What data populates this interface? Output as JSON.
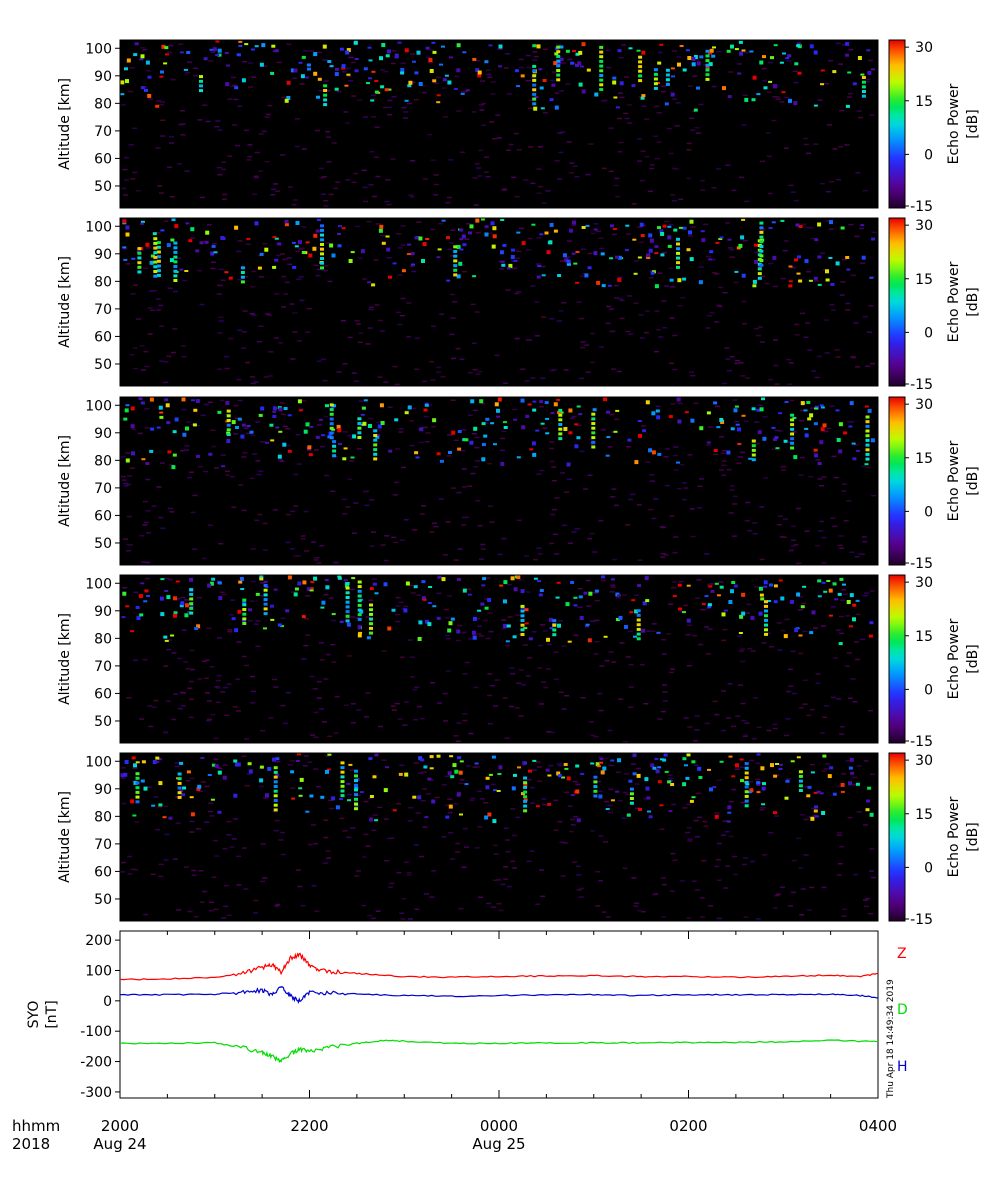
{
  "chart_data": [
    {
      "type": "heatmap",
      "panel": 1,
      "ylabel": "Altitude [km]",
      "ylim": [
        42,
        103
      ],
      "yticks": [
        "50",
        "60",
        "70",
        "80",
        "90",
        "100"
      ],
      "colorbar": {
        "label": "Echo Power [dB]",
        "range": [
          -15,
          32
        ],
        "ticks": [
          "30",
          "15",
          "0",
          "-15"
        ]
      },
      "seed": 11
    },
    {
      "type": "heatmap",
      "panel": 2,
      "ylabel": "Altitude [km]",
      "ylim": [
        42,
        103
      ],
      "yticks": [
        "50",
        "60",
        "70",
        "80",
        "90",
        "100"
      ],
      "colorbar": {
        "label": "Echo Power [dB]",
        "range": [
          -15,
          32
        ],
        "ticks": [
          "30",
          "15",
          "0",
          "-15"
        ]
      },
      "seed": 23
    },
    {
      "type": "heatmap",
      "panel": 3,
      "ylabel": "Altitude [km]",
      "ylim": [
        42,
        103
      ],
      "yticks": [
        "50",
        "60",
        "70",
        "80",
        "90",
        "100"
      ],
      "colorbar": {
        "label": "Echo Power [dB]",
        "range": [
          -15,
          32
        ],
        "ticks": [
          "30",
          "15",
          "0",
          "-15"
        ]
      },
      "seed": 37
    },
    {
      "type": "heatmap",
      "panel": 4,
      "ylabel": "Altitude [km]",
      "ylim": [
        42,
        103
      ],
      "yticks": [
        "50",
        "60",
        "70",
        "80",
        "90",
        "100"
      ],
      "colorbar": {
        "label": "Echo Power [dB]",
        "range": [
          -15,
          32
        ],
        "ticks": [
          "30",
          "15",
          "0",
          "-15"
        ]
      },
      "seed": 41
    },
    {
      "type": "heatmap",
      "panel": 5,
      "ylabel": "Altitude [km]",
      "ylim": [
        42,
        103
      ],
      "yticks": [
        "50",
        "60",
        "70",
        "80",
        "90",
        "100"
      ],
      "colorbar": {
        "label": "Echo Power [dB]",
        "range": [
          -15,
          32
        ],
        "ticks": [
          "30",
          "15",
          "0",
          "-15"
        ]
      },
      "seed": 53
    },
    {
      "type": "line",
      "ylabel": "SYO [nT]",
      "ylim": [
        -320,
        230
      ],
      "yticks": [
        "200",
        "100",
        "0",
        "-100",
        "-200",
        "-300"
      ],
      "x_hours_labels": [
        "2000",
        "2200",
        "0000",
        "0200",
        "0400"
      ],
      "series": [
        {
          "name": "Z",
          "color": "#ff0000",
          "points": [
            [
              0,
              70
            ],
            [
              0.5,
              72
            ],
            [
              1,
              78
            ],
            [
              1.3,
              90
            ],
            [
              1.5,
              110
            ],
            [
              1.6,
              120
            ],
            [
              1.7,
              95
            ],
            [
              1.8,
              140
            ],
            [
              1.9,
              150
            ],
            [
              2,
              120
            ],
            [
              2.1,
              100
            ],
            [
              2.3,
              95
            ],
            [
              2.6,
              88
            ],
            [
              3,
              80
            ],
            [
              3.5,
              78
            ],
            [
              4,
              80
            ],
            [
              4.5,
              82
            ],
            [
              5,
              83
            ],
            [
              5.5,
              80
            ],
            [
              6,
              80
            ],
            [
              6.5,
              78
            ],
            [
              7,
              80
            ],
            [
              7.5,
              85
            ],
            [
              7.8,
              80
            ],
            [
              8,
              90
            ]
          ]
        },
        {
          "name": "D",
          "color": "#00dd00",
          "points": [
            [
              0,
              -140
            ],
            [
              0.5,
              -140
            ],
            [
              1,
              -138
            ],
            [
              1.3,
              -155
            ],
            [
              1.5,
              -170
            ],
            [
              1.6,
              -180
            ],
            [
              1.7,
              -200
            ],
            [
              1.8,
              -175
            ],
            [
              1.9,
              -160
            ],
            [
              2,
              -165
            ],
            [
              2.2,
              -155
            ],
            [
              2.5,
              -140
            ],
            [
              2.8,
              -130
            ],
            [
              3,
              -133
            ],
            [
              3.5,
              -140
            ],
            [
              4,
              -140
            ],
            [
              4.5,
              -139
            ],
            [
              5,
              -138
            ],
            [
              5.5,
              -138
            ],
            [
              6,
              -137
            ],
            [
              6.5,
              -137
            ],
            [
              7,
              -135
            ],
            [
              7.5,
              -130
            ],
            [
              8,
              -135
            ]
          ]
        },
        {
          "name": "H",
          "color": "#0000cc",
          "points": [
            [
              0,
              20
            ],
            [
              0.5,
              20
            ],
            [
              1,
              22
            ],
            [
              1.3,
              28
            ],
            [
              1.5,
              35
            ],
            [
              1.6,
              20
            ],
            [
              1.7,
              45
            ],
            [
              1.8,
              15
            ],
            [
              1.9,
              0
            ],
            [
              2,
              30
            ],
            [
              2.2,
              25
            ],
            [
              2.5,
              22
            ],
            [
              3,
              18
            ],
            [
              3.5,
              15
            ],
            [
              4,
              18
            ],
            [
              4.5,
              20
            ],
            [
              5,
              20
            ],
            [
              5.5,
              18
            ],
            [
              6,
              20
            ],
            [
              6.5,
              20
            ],
            [
              7,
              20
            ],
            [
              7.5,
              22
            ],
            [
              7.8,
              18
            ],
            [
              8,
              10
            ]
          ]
        }
      ]
    }
  ],
  "xaxis": {
    "hhmm_label": "hhmm",
    "year_label": "2018",
    "ticks": [
      {
        "label": "2000",
        "date": "Aug 24"
      },
      {
        "label": "2200",
        "date": ""
      },
      {
        "label": "0000",
        "date": "Aug 25"
      },
      {
        "label": "0200",
        "date": ""
      },
      {
        "label": "0400",
        "date": ""
      }
    ]
  },
  "timestamp": "Thu Apr 18 14:49:34 2019",
  "colors": {
    "frame": "#000000",
    "background": "#000000"
  }
}
